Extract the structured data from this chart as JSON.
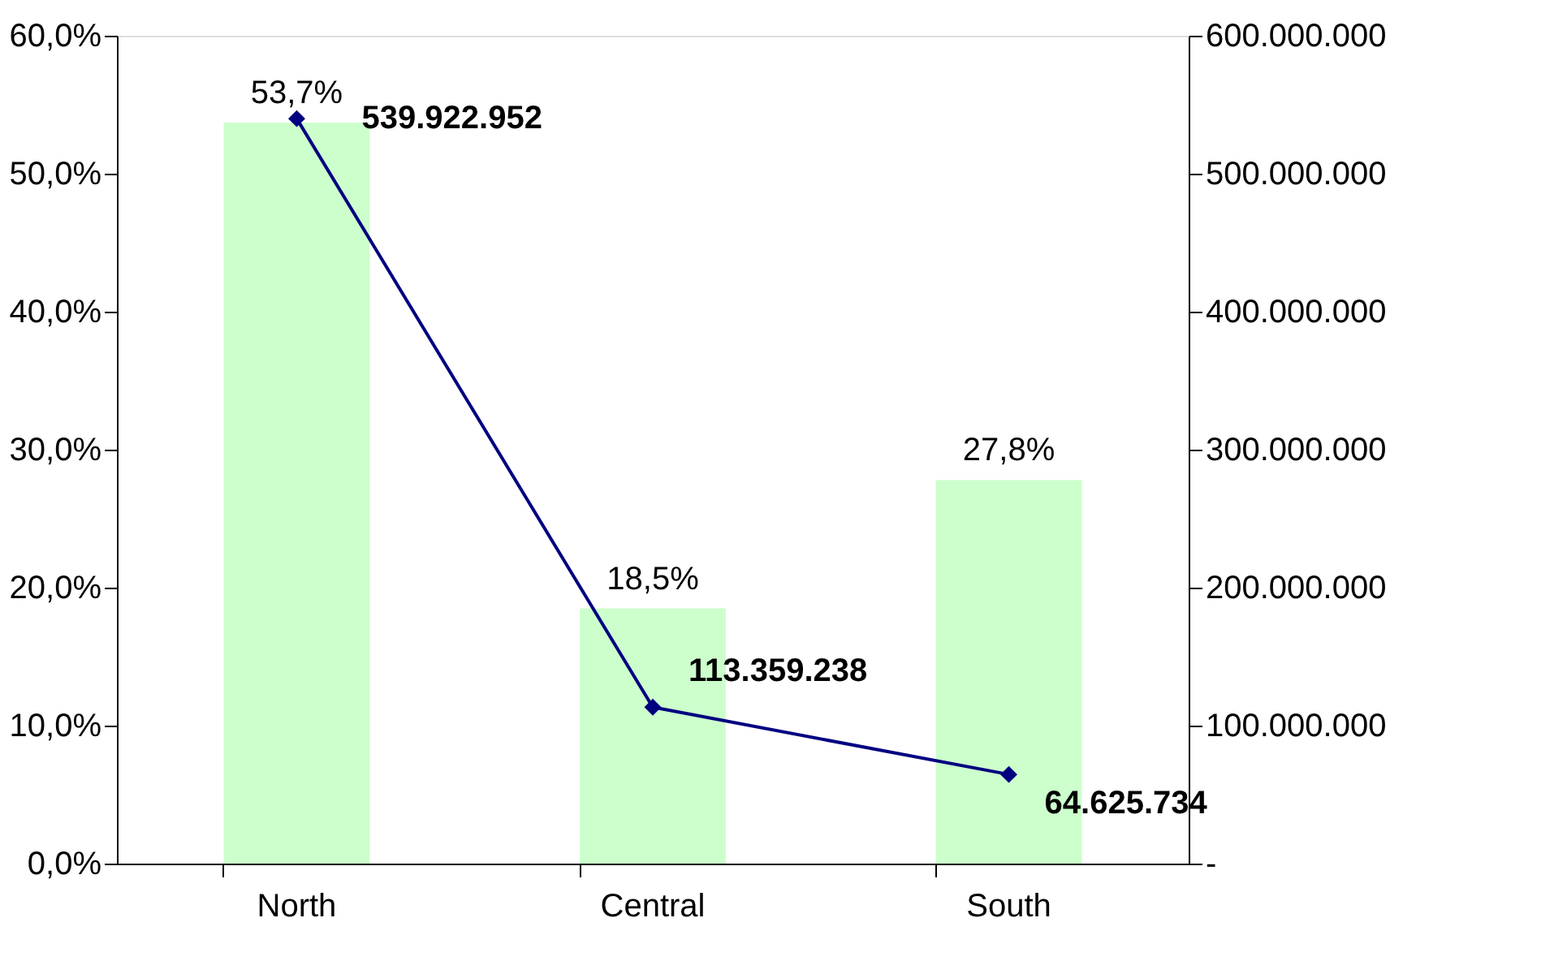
{
  "chart_data": {
    "type": "bar",
    "categories": [
      "North",
      "Central",
      "South"
    ],
    "series": [
      {
        "color": "#ccffcc",
        "values": [
          53.7,
          18.5,
          27.8
        ],
        "value_labels": [
          "53,7%",
          "18,5%",
          "27,8%"
        ]
      },
      {
        "type": "line",
        "axis": "y2",
        "color": "#000080",
        "marker": "diamond",
        "values": [
          539922952,
          113359238,
          64625734
        ],
        "value_labels": [
          "539.922.952",
          "113.359.238",
          "64.625.734"
        ]
      }
    ],
    "ylim": [
      0,
      60
    ],
    "yticks": [
      {
        "value": 0,
        "label": "0,0%"
      },
      {
        "value": 10,
        "label": "10,0%"
      },
      {
        "value": 20,
        "label": "20,0%"
      },
      {
        "value": 30,
        "label": "30,0%"
      },
      {
        "value": 40,
        "label": "40,0%"
      },
      {
        "value": 50,
        "label": "50,0%"
      },
      {
        "value": 60,
        "label": "60,0%"
      }
    ],
    "y2lim": [
      0,
      600000000
    ],
    "y2ticks": [
      {
        "value": 0,
        "label": "-"
      },
      {
        "value": 100000000,
        "label": "100.000.000"
      },
      {
        "value": 200000000,
        "label": "200.000.000"
      },
      {
        "value": 300000000,
        "label": "300.000.000"
      },
      {
        "value": 400000000,
        "label": "400.000.000"
      },
      {
        "value": 500000000,
        "label": "500.000.000"
      },
      {
        "value": 600000000,
        "label": "600.000.000"
      }
    ],
    "grid": false
  }
}
